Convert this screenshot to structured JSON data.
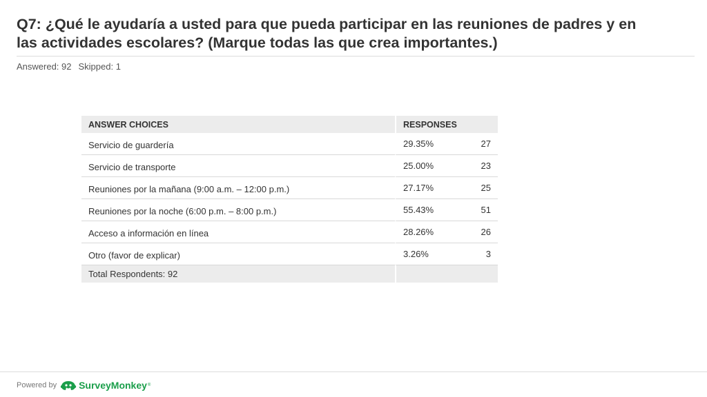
{
  "question": {
    "title": "Q7: ¿Qué le ayudaría a usted para que pueda participar en las reuniones de padres y en las actividades escolares? (Marque todas las que crea importantes.)",
    "answered": "Answered: 92",
    "skipped": "Skipped: 1"
  },
  "table": {
    "header_choices": "ANSWER CHOICES",
    "header_responses": "RESPONSES",
    "rows": [
      {
        "choice": "Servicio de guardería",
        "percent": "29.35%",
        "count": "27"
      },
      {
        "choice": "Servicio de transporte",
        "percent": "25.00%",
        "count": "23"
      },
      {
        "choice": "Reuniones por la mañana (9:00 a.m. – 12:00 p.m.)",
        "percent": "27.17%",
        "count": "25"
      },
      {
        "choice": "Reuniones por la noche (6:00 p.m. – 8:00 p.m.)",
        "percent": "55.43%",
        "count": "51"
      },
      {
        "choice": "Acceso a información en línea",
        "percent": "28.26%",
        "count": "26"
      },
      {
        "choice": "Otro (favor de explicar)",
        "percent": "3.26%",
        "count": "3"
      }
    ],
    "total": "Total Respondents: 92"
  },
  "footer": {
    "powered_by": "Powered by",
    "brand": "SurveyMonkey",
    "trademark": "®",
    "logo_icon": "surveymonkey-logo-icon",
    "brand_color": "#1a9e4a"
  }
}
